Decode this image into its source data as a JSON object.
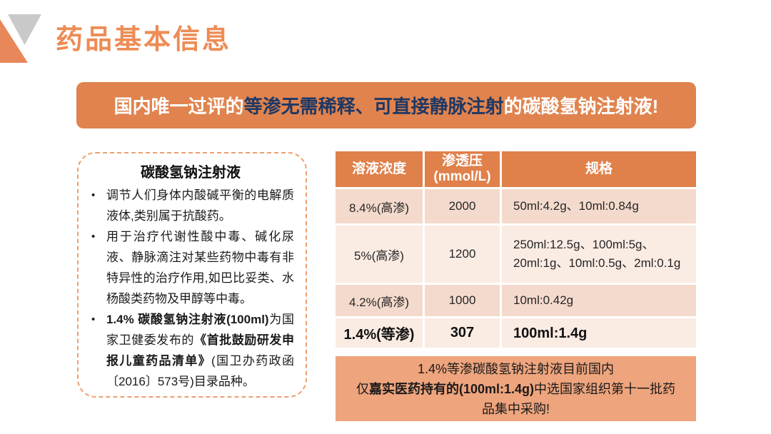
{
  "colors": {
    "accent_orange": "#e0834e",
    "title_orange": "#ed8c55",
    "table_header_orange": "#e0804a",
    "row_odd": "#f4dacc",
    "row_even": "#faebe3",
    "footnote_bg": "#eea47d",
    "navy": "#1f3864",
    "triangle_gray": "#c9c9c9"
  },
  "header": {
    "title": "药品基本信息"
  },
  "banner": {
    "run1": "国内唯一过评的",
    "run2": "等渗无需稀释、可直接静脉注射",
    "run3": "的碳酸氢钠注射液!"
  },
  "infobox": {
    "title": "碳酸氢钠注射液",
    "bullet1": "调节人们身体内酸碱平衡的电解质液体,类别属于抗酸药。",
    "bullet2": "用于治疗代谢性酸中毒、碱化尿液、静脉滴注对某些药物中毒有非特异性的治疗作用,如巴比妥类、水杨酸类药物及甲醇等中毒。",
    "bullet3": {
      "run1": "1.4% 碳酸氢钠注射液(100ml)",
      "run2": "为国家卫健委发布的",
      "run3": "《首批鼓励研发申报儿童药品清单》",
      "run4": "(国卫办药政函〔2016〕573号)目录品种。"
    }
  },
  "table": {
    "col1_header": "溶液浓度",
    "col2_header_line1": "渗透压",
    "col2_header_line2": "(mmol/L)",
    "col3_header": "规格",
    "rows": [
      {
        "concentration": "8.4%(高渗)",
        "osmolality": "2000",
        "spec": "50ml:4.2g、10ml:0.84g",
        "emphasis": false
      },
      {
        "concentration": "5%(高渗)",
        "osmolality": "1200",
        "spec": "250ml:12.5g、100ml:5g、20ml:1g、10ml:0.5g、2ml:0.1g",
        "emphasis": false
      },
      {
        "concentration": "4.2%(高渗)",
        "osmolality": "1000",
        "spec": "10ml:0.42g",
        "emphasis": false
      },
      {
        "concentration": "1.4%(等渗)",
        "osmolality": "307",
        "spec": "100ml:1.4g",
        "emphasis": true
      }
    ]
  },
  "footnote": {
    "line1": "1.4%等渗碳酸氢钠注射液目前国内",
    "line2_run1": "仅",
    "line2_run2": "嘉实医药持有的(100ml:1.4g)",
    "line2_run3": "中选国家组织第十一批药",
    "line3": "品集中采购!"
  }
}
